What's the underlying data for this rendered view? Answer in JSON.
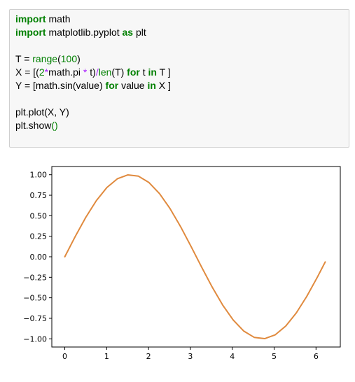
{
  "code_cell": {
    "lines": [
      [
        {
          "t": "import",
          "c": "kw"
        },
        {
          "t": " math",
          "c": ""
        }
      ],
      [
        {
          "t": "import",
          "c": "kw"
        },
        {
          "t": " matplotlib.pyplot ",
          "c": ""
        },
        {
          "t": "as",
          "c": "kw"
        },
        {
          "t": " plt",
          "c": ""
        }
      ],
      [],
      [
        {
          "t": "T = ",
          "c": ""
        },
        {
          "t": "range",
          "c": "bi"
        },
        {
          "t": "(",
          "c": ""
        },
        {
          "t": "100",
          "c": "num"
        },
        {
          "t": ")",
          "c": ""
        }
      ],
      [
        {
          "t": "X = [(",
          "c": ""
        },
        {
          "t": "2",
          "c": "num"
        },
        {
          "t": "*",
          "c": "op"
        },
        {
          "t": "math.pi ",
          "c": ""
        },
        {
          "t": "*",
          "c": "op"
        },
        {
          "t": " t)",
          "c": ""
        },
        {
          "t": "/",
          "c": "op"
        },
        {
          "t": "len",
          "c": "bi"
        },
        {
          "t": "(T) ",
          "c": ""
        },
        {
          "t": "for",
          "c": "kw"
        },
        {
          "t": " t ",
          "c": ""
        },
        {
          "t": "in",
          "c": "kw"
        },
        {
          "t": " T ]",
          "c": ""
        }
      ],
      [
        {
          "t": "Y = [math.sin(value) ",
          "c": ""
        },
        {
          "t": "for",
          "c": "kw"
        },
        {
          "t": " value ",
          "c": ""
        },
        {
          "t": "in",
          "c": "kw"
        },
        {
          "t": " X ]",
          "c": ""
        }
      ],
      [],
      [
        {
          "t": "plt.plot(X, Y)",
          "c": ""
        }
      ],
      [
        {
          "t": "plt.show",
          "c": ""
        },
        {
          "t": "()",
          "c": "num"
        }
      ]
    ]
  },
  "chart_data": {
    "type": "line",
    "title": "",
    "xlabel": "",
    "ylabel": "",
    "xlim": [
      -0.31,
      6.58
    ],
    "ylim": [
      -1.1,
      1.1
    ],
    "x_ticks": [
      0,
      1,
      2,
      3,
      4,
      5,
      6
    ],
    "x_tick_labels": [
      "0",
      "1",
      "2",
      "3",
      "4",
      "5",
      "6"
    ],
    "y_ticks": [
      1.0,
      0.75,
      0.5,
      0.25,
      0.0,
      -0.25,
      -0.5,
      -0.75,
      -1.0
    ],
    "y_tick_labels": [
      "1.00",
      "0.75",
      "0.50",
      "0.25",
      "0.00",
      "−0.25",
      "−0.50",
      "−0.75",
      "−1.00"
    ],
    "grid": false,
    "series": [
      {
        "color": "#ff7f0e",
        "line_color": "#e08a3e",
        "x": [
          0.0,
          0.2513,
          0.5027,
          0.754,
          1.0053,
          1.2566,
          1.508,
          1.7593,
          2.0106,
          2.2619,
          2.5133,
          2.7646,
          3.0159,
          3.2673,
          3.5186,
          3.7699,
          4.0212,
          4.2726,
          4.5239,
          4.7752,
          5.0265,
          5.2779,
          5.5292,
          5.7805,
          6.0319,
          6.2204
        ],
        "y": [
          0.0,
          0.2487,
          0.4818,
          0.6845,
          0.8443,
          0.9511,
          0.998,
          0.9823,
          0.9048,
          0.7705,
          0.5878,
          0.3681,
          0.1253,
          -0.1253,
          -0.3681,
          -0.5878,
          -0.7705,
          -0.9048,
          -0.9823,
          -0.998,
          -0.9511,
          -0.8443,
          -0.6845,
          -0.4818,
          -0.2487,
          -0.0628
        ]
      }
    ]
  }
}
